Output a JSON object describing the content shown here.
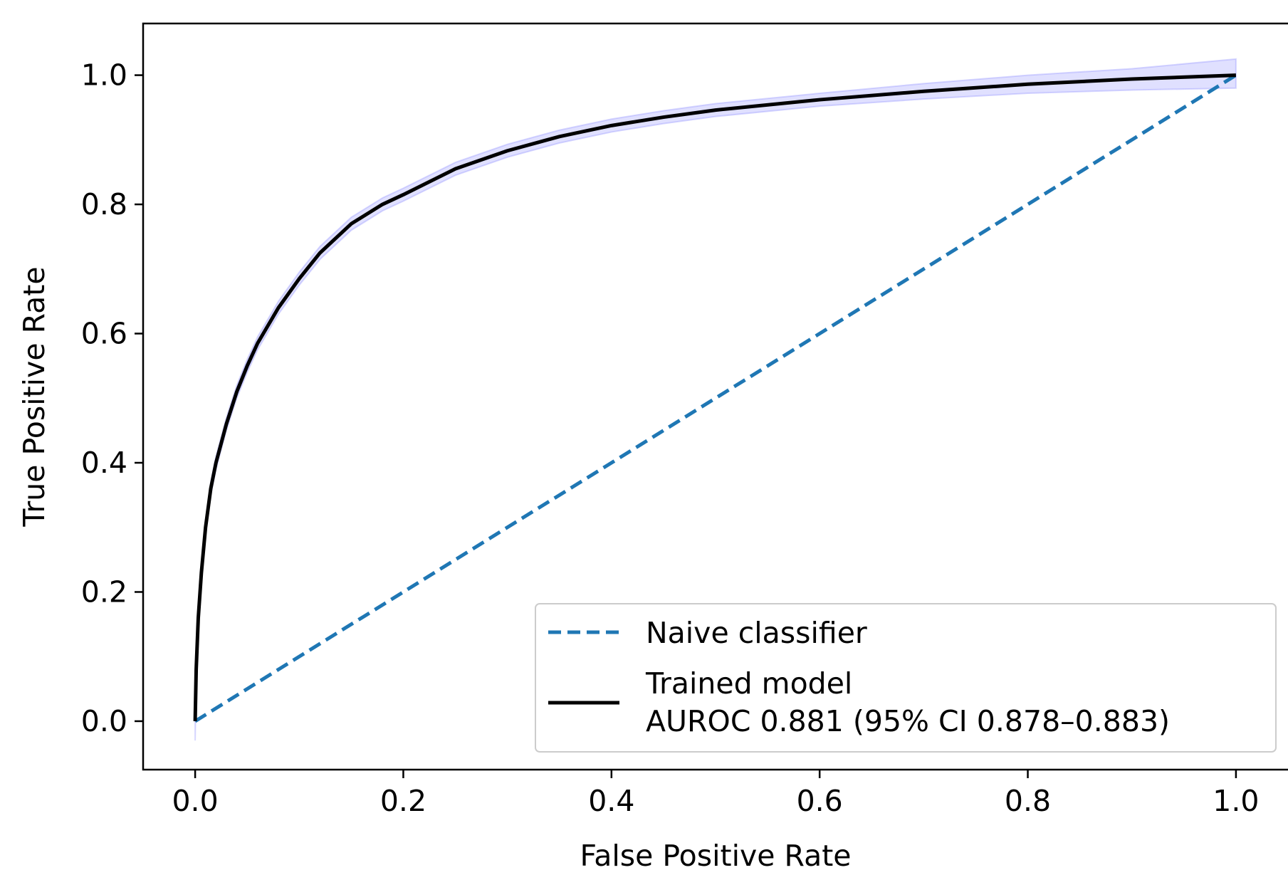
{
  "chart_data": {
    "type": "line",
    "xlabel": "False Positive Rate",
    "ylabel": "True Positive Rate",
    "xlim": [
      -0.05,
      1.05
    ],
    "ylim": [
      -0.075,
      1.08
    ],
    "xticks": [
      "0.0",
      "0.2",
      "0.4",
      "0.6",
      "0.8",
      "1.0"
    ],
    "yticks": [
      "0.0",
      "0.2",
      "0.4",
      "0.6",
      "0.8",
      "1.0"
    ],
    "legend_position": "lower-right",
    "series": [
      {
        "name": "Naive classifier",
        "style": "dashed",
        "color": "#1f77b4",
        "x": [
          0.0,
          1.0
        ],
        "y": [
          0.0,
          1.0
        ]
      },
      {
        "name": "Trained model",
        "label_line2": "AUROC 0.881 (95% CI 0.878–0.883)",
        "style": "solid",
        "color": "#000000",
        "band_color": "#6666ff",
        "x": [
          0.0,
          0.001,
          0.003,
          0.006,
          0.01,
          0.015,
          0.02,
          0.03,
          0.04,
          0.05,
          0.06,
          0.08,
          0.1,
          0.12,
          0.15,
          0.18,
          0.2,
          0.25,
          0.3,
          0.35,
          0.4,
          0.45,
          0.5,
          0.6,
          0.7,
          0.8,
          0.9,
          1.0
        ],
        "y": [
          0.0,
          0.08,
          0.16,
          0.23,
          0.3,
          0.36,
          0.4,
          0.46,
          0.51,
          0.55,
          0.585,
          0.64,
          0.685,
          0.725,
          0.77,
          0.8,
          0.815,
          0.855,
          0.883,
          0.905,
          0.922,
          0.935,
          0.946,
          0.962,
          0.975,
          0.986,
          0.994,
          1.0
        ],
        "ci_lower": [
          -0.03,
          0.07,
          0.15,
          0.22,
          0.29,
          0.35,
          0.39,
          0.45,
          0.5,
          0.54,
          0.575,
          0.63,
          0.675,
          0.715,
          0.76,
          0.79,
          0.805,
          0.845,
          0.873,
          0.895,
          0.912,
          0.925,
          0.936,
          0.952,
          0.963,
          0.972,
          0.977,
          0.98
        ],
        "ci_upper": [
          0.02,
          0.09,
          0.17,
          0.24,
          0.31,
          0.37,
          0.41,
          0.47,
          0.52,
          0.56,
          0.595,
          0.65,
          0.695,
          0.735,
          0.78,
          0.81,
          0.825,
          0.865,
          0.893,
          0.915,
          0.932,
          0.945,
          0.956,
          0.972,
          0.987,
          1.0,
          1.01,
          1.025
        ]
      }
    ]
  }
}
